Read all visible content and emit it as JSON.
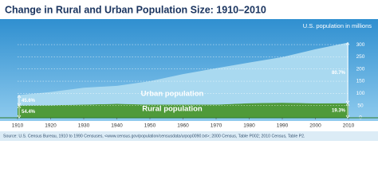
{
  "chart_data": {
    "type": "stacked-area",
    "title": "Change in Rural and Urban Population Size: 1910–2010",
    "y_label": "U.S. population in millions",
    "x": [
      1910,
      1920,
      1930,
      1940,
      1950,
      1960,
      1970,
      1980,
      1990,
      2000,
      2010
    ],
    "xlim": [
      1910,
      2010
    ],
    "xticks": [
      1910,
      1920,
      1930,
      1940,
      1950,
      1960,
      1970,
      1980,
      1990,
      2000,
      2010
    ],
    "ylim": [
      0,
      320
    ],
    "yticks": [
      0,
      50,
      100,
      150,
      200,
      250,
      300
    ],
    "grid": true,
    "series": [
      {
        "name": "Rural population",
        "color": "#4f9a3a",
        "values": [
          50,
          51.5,
          54,
          57,
          54,
          54,
          54,
          59.5,
          61.7,
          59,
          59.5
        ]
      },
      {
        "name": "Urban population",
        "color": "#a9d9f0",
        "values": [
          42,
          54,
          69,
          74,
          96,
          125,
          149,
          167,
          187,
          222,
          249
        ]
      }
    ],
    "annotations": [
      "45.6%",
      "54.4%",
      "80.7%",
      "19.3%"
    ],
    "source": "Source: U.S. Census Bureau, 1910 to 1990 Censuses, <www.census.gov/population/censusdata/urpop0090.txt>; 2000 Census, Table P002; 2010 Census, Table P2."
  }
}
